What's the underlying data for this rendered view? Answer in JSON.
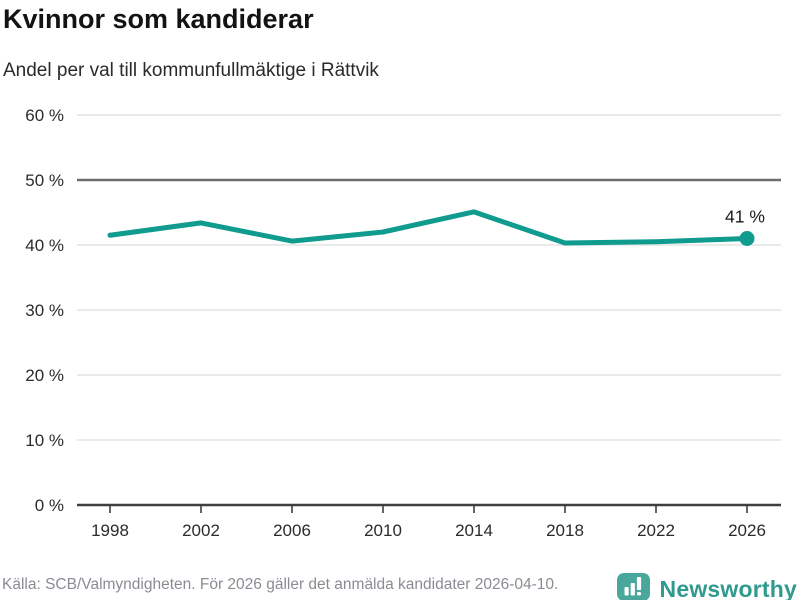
{
  "header": {
    "title": "Kvinnor som kandiderar",
    "subtitle": "Andel per val till kommunfullmäktige i Rättvik"
  },
  "chart_data": {
    "type": "line",
    "title": "Kvinnor som kandiderar",
    "subtitle": "Andel per val till kommunfullmäktige i Rättvik",
    "x": [
      1998,
      2002,
      2006,
      2010,
      2014,
      2018,
      2022,
      2026
    ],
    "xtick_labels": [
      "1998",
      "2002",
      "2006",
      "2010",
      "2014",
      "2018",
      "2022",
      "2026"
    ],
    "series": [
      {
        "name": "Andel kvinnor som kandiderar",
        "values": [
          41.5,
          43.4,
          40.6,
          42.0,
          45.1,
          40.3,
          40.5,
          41.0
        ]
      }
    ],
    "ylim": [
      0,
      60
    ],
    "yticks": [
      0,
      10,
      20,
      30,
      40,
      50,
      60
    ],
    "ytick_labels": [
      "0 %",
      "10 %",
      "20 %",
      "30 %",
      "40 %",
      "50 %",
      "60 %"
    ],
    "reference_line_y": 50,
    "end_point_label": "41 %",
    "grid": true,
    "legend": "none",
    "colors": {
      "line": "#0f9b8e",
      "grid": "#e3e3e3",
      "reference_line": "#6e6e6e",
      "axis": "#3f3f3f",
      "tick_label": "#2b2b2b",
      "annotation": "#1a1a1a"
    }
  },
  "footer": {
    "source": "Källa: SCB/Valmyndigheten. För 2026 gäller det anmälda kandidater 2026-04-10.",
    "brand": "Newsworthy",
    "brand_color": "#2f9a8d",
    "logo_color": "#4aa79b",
    "logo_bar_color": "#ffffff"
  }
}
